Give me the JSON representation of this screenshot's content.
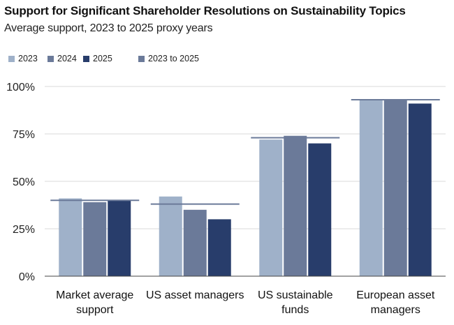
{
  "chart_data": {
    "type": "bar",
    "title": "Support for Significant Shareholder Resolutions on Sustainability Topics",
    "subtitle": "Average support, 2023 to 2025 proxy years",
    "categories": [
      [
        "Market average",
        "support"
      ],
      [
        "US asset managers"
      ],
      [
        "US sustainable",
        "funds"
      ],
      [
        "European asset",
        "managers"
      ]
    ],
    "series": [
      {
        "name": "2023",
        "color": "#9fb1c9",
        "values": [
          41,
          42,
          72,
          93
        ]
      },
      {
        "name": "2024",
        "color": "#6b7a99",
        "values": [
          39,
          35,
          74,
          93
        ]
      },
      {
        "name": "2025",
        "color": "#283d6b",
        "values": [
          40,
          30,
          70,
          91
        ]
      }
    ],
    "reference": {
      "name": "2023 to 2025",
      "color": "#6b7a99",
      "values": [
        40,
        38,
        73,
        93
      ]
    },
    "ylim": [
      0,
      100
    ],
    "yticks": [
      {
        "value": 0,
        "label": "0%"
      },
      {
        "value": 25,
        "label": "25%"
      },
      {
        "value": 50,
        "label": "50%"
      },
      {
        "value": 75,
        "label": "75%"
      },
      {
        "value": 100,
        "label": "100%"
      }
    ],
    "grid": true,
    "legend_position": "top-left"
  }
}
